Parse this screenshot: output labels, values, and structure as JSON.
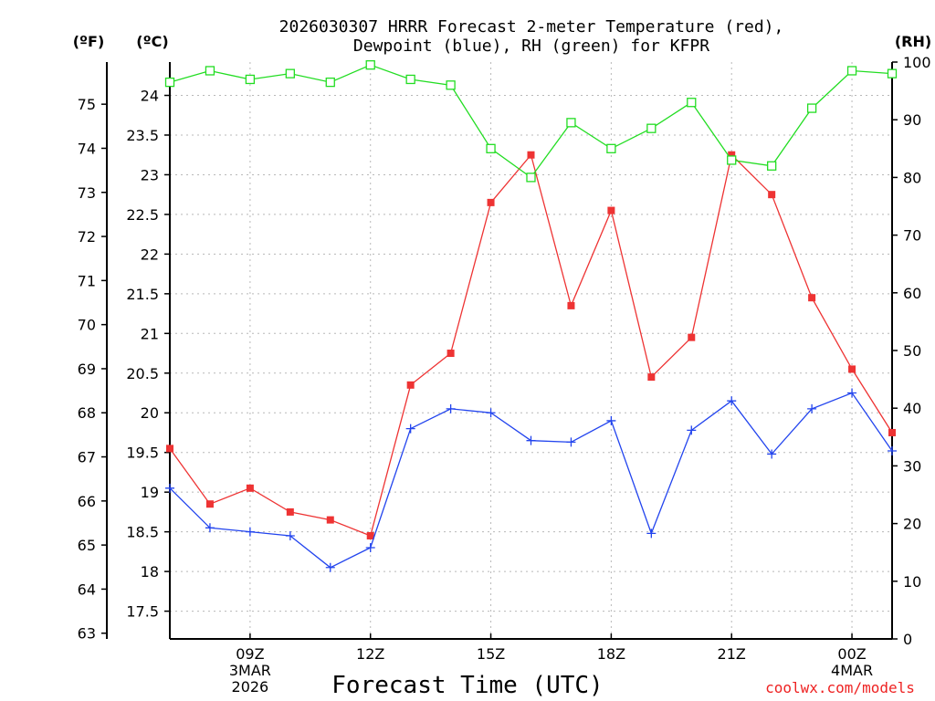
{
  "chart_data": {
    "type": "line",
    "title": [
      "2026030307 HRRR Forecast 2-meter Temperature (red),",
      "Dewpoint (blue), RH (green) for KFPR"
    ],
    "xlabel": "Forecast Time (UTC)",
    "credit": "coolwx.com/models",
    "units": {
      "fahrenheit": "(ºF)",
      "celsius": "(ºC)",
      "rh": "(RH)"
    },
    "x_hours": [
      0,
      1,
      2,
      3,
      4,
      5,
      6,
      7,
      8,
      9,
      10,
      11,
      12,
      13,
      14,
      15,
      16,
      17,
      18
    ],
    "x_ticks": [
      {
        "hour": 2,
        "lines": [
          "09Z",
          "3MAR",
          "2026"
        ]
      },
      {
        "hour": 5,
        "lines": [
          "12Z"
        ]
      },
      {
        "hour": 8,
        "lines": [
          "15Z"
        ]
      },
      {
        "hour": 11,
        "lines": [
          "18Z"
        ]
      },
      {
        "hour": 14,
        "lines": [
          "21Z"
        ]
      },
      {
        "hour": 17,
        "lines": [
          "00Z",
          "4MAR"
        ]
      }
    ],
    "y_celsius": {
      "range": [
        17.15,
        24.42
      ],
      "ticks": [
        "17.5",
        "18",
        "18.5",
        "19",
        "19.5",
        "20",
        "20.5",
        "21",
        "21.5",
        "22",
        "22.5",
        "23",
        "23.5",
        "24"
      ]
    },
    "y_fahrenheit": {
      "ticks": [
        "63",
        "64",
        "65",
        "66",
        "67",
        "68",
        "69",
        "70",
        "71",
        "72",
        "73",
        "74",
        "75"
      ]
    },
    "y_rh": {
      "range": [
        0,
        100
      ],
      "ticks": [
        "0",
        "10",
        "20",
        "30",
        "40",
        "50",
        "60",
        "70",
        "80",
        "90",
        "100"
      ]
    },
    "series": [
      {
        "name": "Temperature",
        "axis": "celsius",
        "color": "#ee3333",
        "marker": "filled-square",
        "values": [
          19.55,
          18.85,
          19.05,
          18.75,
          18.65,
          18.45,
          20.35,
          20.75,
          22.65,
          23.25,
          21.35,
          22.55,
          20.45,
          20.95,
          23.25,
          22.75,
          21.45,
          20.55,
          19.75
        ]
      },
      {
        "name": "Dewpoint",
        "axis": "celsius",
        "color": "#2244ee",
        "marker": "plus",
        "values": [
          19.05,
          18.55,
          18.5,
          18.45,
          18.05,
          18.3,
          19.8,
          20.05,
          20.0,
          19.65,
          19.63,
          19.9,
          18.48,
          19.78,
          20.15,
          19.48,
          20.05,
          20.25,
          19.52
        ]
      },
      {
        "name": "RH",
        "axis": "rh",
        "color": "#22dd22",
        "marker": "open-square",
        "values": [
          96.5,
          98.5,
          97.0,
          98.0,
          96.5,
          99.5,
          97.0,
          96.0,
          85.0,
          80.0,
          89.5,
          85.0,
          88.5,
          93.0,
          83.0,
          82.0,
          92.0,
          98.5,
          98.0
        ]
      }
    ]
  }
}
